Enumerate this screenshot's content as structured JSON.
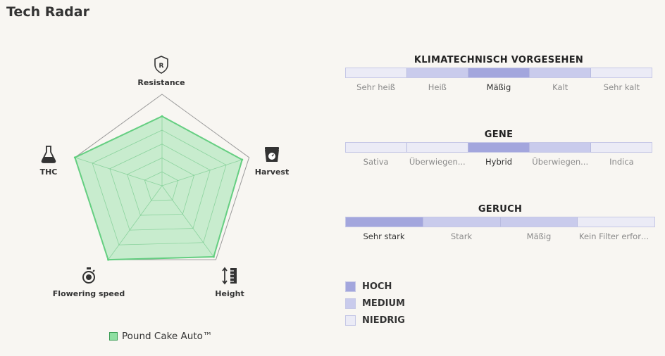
{
  "page_title": "Tech Radar",
  "chart_data": {
    "type": "radar",
    "axes": [
      "Resistance",
      "Harvest",
      "Height",
      "Flowering speed",
      "THC"
    ],
    "axis_icons": [
      "shield-icon",
      "scale-icon",
      "ruler-icon",
      "stopwatch-icon",
      "flask-icon"
    ],
    "levels": 5,
    "max": 5,
    "series": [
      {
        "name": "Pound Cake Auto™",
        "values": [
          3.8,
          4.6,
          4.8,
          5.0,
          5.0
        ],
        "color": "#8fdfa2",
        "stroke": "#5fd17d"
      }
    ]
  },
  "legend": {
    "label": "Pound Cake Auto™"
  },
  "scales": [
    {
      "title": "KLIMATECHNISCH VORGESEHEN",
      "segments": [
        "niedrig",
        "medium",
        "hoch",
        "medium",
        "niedrig"
      ],
      "labels": [
        "Sehr heiß",
        "Heiß",
        "Mäßig",
        "Kalt",
        "Sehr kalt"
      ]
    },
    {
      "title": "GENE",
      "segments": [
        "niedrig",
        "niedrig",
        "hoch",
        "medium",
        "niedrig"
      ],
      "labels": [
        "Sativa",
        "Überwiegen...",
        "Hybrid",
        "Überwiegen...",
        "Indica"
      ]
    },
    {
      "title": "GERUCH",
      "segments": [
        "hoch",
        "medium",
        "medium",
        "niedrig"
      ],
      "labels": [
        "Sehr stark",
        "Stark",
        "Mäßig",
        "Kein Filter erforderlich"
      ]
    }
  ],
  "key": [
    {
      "label": "HOCH",
      "color": "#a3a6dd"
    },
    {
      "label": "MEDIUM",
      "color": "#c9cbec"
    },
    {
      "label": "NIEDRIG",
      "color": "#ebebf6"
    }
  ]
}
